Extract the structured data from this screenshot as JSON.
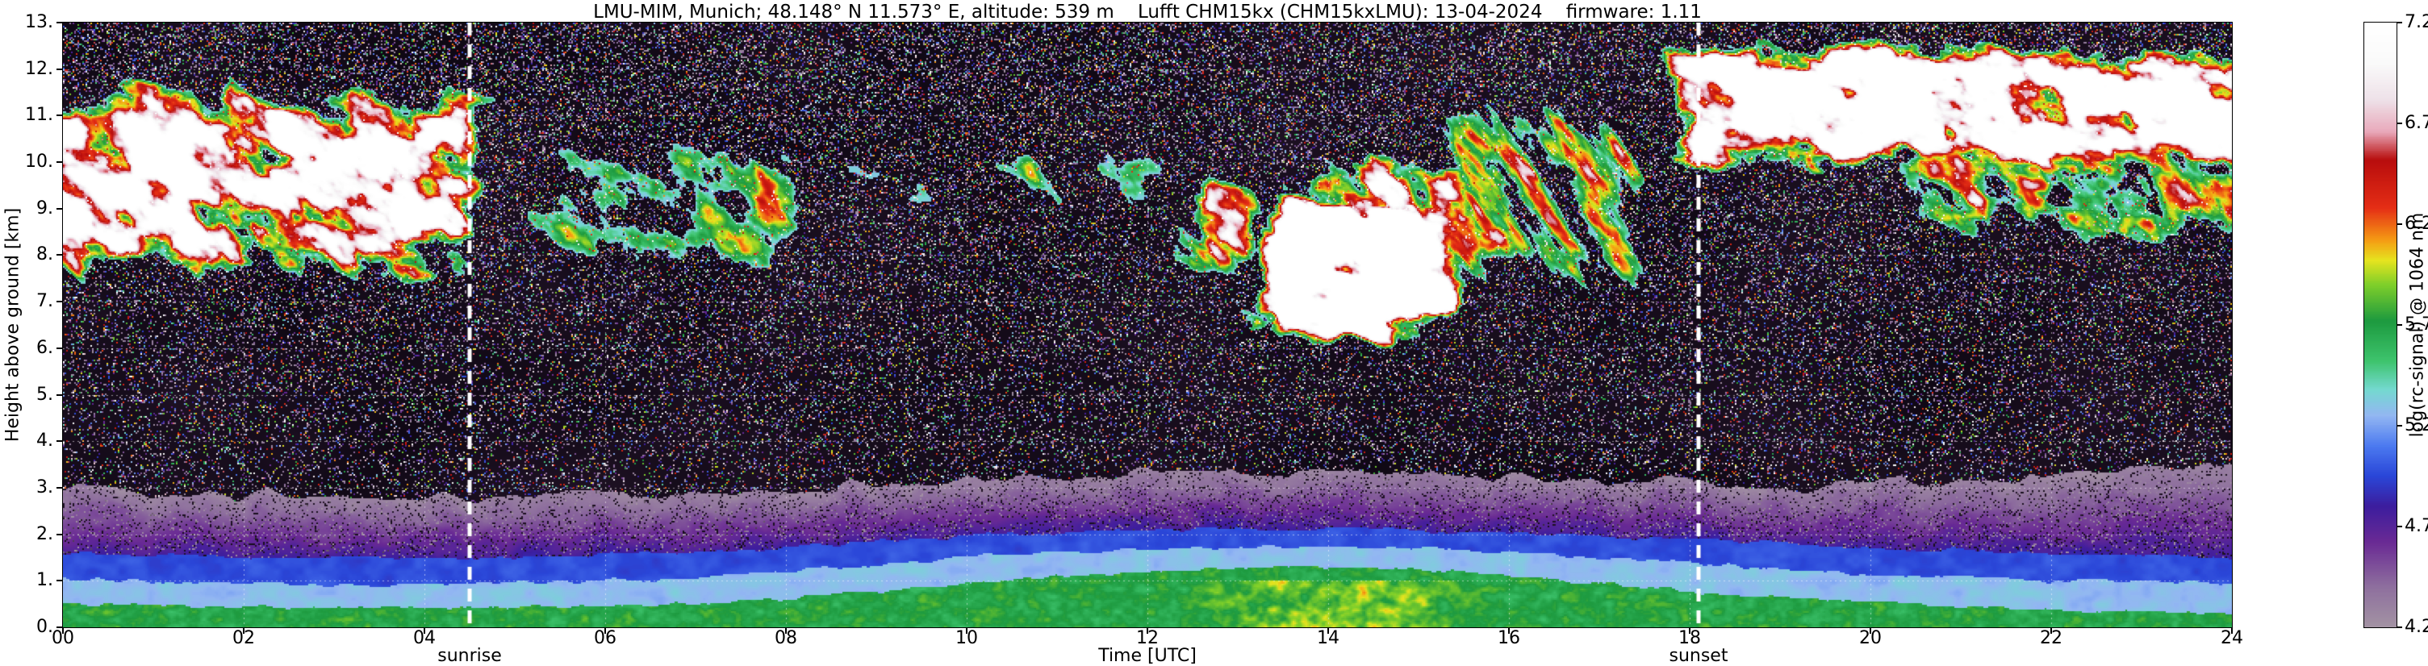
{
  "chart_data": {
    "type": "heatmap",
    "title": "LMU-MIM, Munich; 48.148° N 11.573° E, altitude: 539 m    Lufft CHM15kx (CHM15kxLMU): 13-04-2024    firmware: 1.11",
    "station": "LMU-MIM, Munich",
    "coordinates": "48.148° N 11.573° E",
    "altitude": "539 m",
    "instrument": "Lufft CHM15kx (CHM15kxLMU)",
    "date": "13-04-2024",
    "firmware": "1.11",
    "xlabel": "Time [UTC]",
    "ylabel": "Height above ground [km]",
    "xlim": [
      0,
      24
    ],
    "ylim": [
      0,
      13
    ],
    "xticks": [
      {
        "v": 0,
        "label": "00"
      },
      {
        "v": 2,
        "label": "02"
      },
      {
        "v": 4,
        "label": "04"
      },
      {
        "v": 6,
        "label": "06"
      },
      {
        "v": 8,
        "label": "08"
      },
      {
        "v": 10,
        "label": "10"
      },
      {
        "v": 12,
        "label": "12"
      },
      {
        "v": 14,
        "label": "14"
      },
      {
        "v": 16,
        "label": "16"
      },
      {
        "v": 18,
        "label": "18"
      },
      {
        "v": 20,
        "label": "20"
      },
      {
        "v": 22,
        "label": "22"
      },
      {
        "v": 24,
        "label": "24"
      }
    ],
    "yticks": [
      {
        "v": 0,
        "label": "0."
      },
      {
        "v": 1,
        "label": "1."
      },
      {
        "v": 2,
        "label": "2."
      },
      {
        "v": 3,
        "label": "3."
      },
      {
        "v": 4,
        "label": "4."
      },
      {
        "v": 5,
        "label": "5."
      },
      {
        "v": 6,
        "label": "6."
      },
      {
        "v": 7,
        "label": "7."
      },
      {
        "v": 8,
        "label": "8."
      },
      {
        "v": 9,
        "label": "9."
      },
      {
        "v": 10,
        "label": "10."
      },
      {
        "v": 11,
        "label": "11."
      },
      {
        "v": 12,
        "label": "12."
      },
      {
        "v": 13,
        "label": "13."
      }
    ],
    "grid": {
      "x_step_hours": 2,
      "y_step_km": 1,
      "style": "dotted-white"
    },
    "colorbar": {
      "label": "log(rc-signal) @ 1064 nm",
      "vmin": 4.2,
      "vmax": 7.2,
      "ticks": [
        {
          "v": 7.2,
          "label": "7.2"
        },
        {
          "v": 6.7,
          "label": "6.7"
        },
        {
          "v": 6.2,
          "label": "6.2"
        },
        {
          "v": 5.7,
          "label": "5.7"
        },
        {
          "v": 5.2,
          "label": "5.2"
        },
        {
          "v": 4.7,
          "label": "4.7"
        },
        {
          "v": 4.2,
          "label": "4.2"
        }
      ]
    },
    "annotations": [
      {
        "label": "sunrise",
        "x": 4.5,
        "style": "white-dashed-vertical"
      },
      {
        "label": "sunset",
        "x": 18.1,
        "style": "white-dashed-vertical"
      }
    ],
    "colormap_stops": [
      [
        3.5,
        "#0a050f"
      ],
      [
        4.08,
        "#201225"
      ],
      [
        4.2,
        "#a393a3"
      ],
      [
        4.4,
        "#8e6f9e"
      ],
      [
        4.62,
        "#6a2a94"
      ],
      [
        4.8,
        "#3c1d9e"
      ],
      [
        4.95,
        "#2a46d8"
      ],
      [
        5.1,
        "#4c7af0"
      ],
      [
        5.25,
        "#93b7f2"
      ],
      [
        5.38,
        "#74d9cf"
      ],
      [
        5.52,
        "#3ec46d"
      ],
      [
        5.72,
        "#1d9a3f"
      ],
      [
        5.9,
        "#7fcf2a"
      ],
      [
        6.02,
        "#e6e41f"
      ],
      [
        6.12,
        "#f59c14"
      ],
      [
        6.28,
        "#e52e15"
      ],
      [
        6.52,
        "#b80d0d"
      ],
      [
        6.66,
        "#e9a9bb"
      ],
      [
        6.82,
        "#eee2e9"
      ],
      [
        7.0,
        "#fafafa"
      ],
      [
        7.2,
        "#ffffff"
      ]
    ],
    "noise_seed": 7,
    "background": {
      "base_min": 3.55,
      "speckle_density": 0.12,
      "speckle_height_gain": 0.012
    },
    "boundary_layers": {
      "green_top": [
        0.5,
        0.47,
        0.44,
        0.42,
        0.42,
        0.43,
        0.46,
        0.52,
        0.62,
        0.78,
        0.95,
        1.1,
        1.2,
        1.28,
        1.3,
        1.25,
        1.12,
        0.95,
        0.78,
        0.65,
        0.55,
        0.45,
        0.38,
        0.33,
        0.3
      ],
      "teal_top": [
        1.05,
        1.0,
        0.95,
        0.92,
        0.92,
        0.95,
        1.0,
        1.08,
        1.2,
        1.35,
        1.5,
        1.62,
        1.7,
        1.74,
        1.74,
        1.7,
        1.62,
        1.5,
        1.38,
        1.26,
        1.15,
        1.08,
        1.02,
        0.98,
        0.95
      ],
      "blue_top": [
        1.6,
        1.56,
        1.52,
        1.5,
        1.5,
        1.52,
        1.56,
        1.62,
        1.72,
        1.84,
        1.95,
        2.04,
        2.1,
        2.14,
        2.14,
        2.1,
        2.04,
        1.96,
        1.88,
        1.8,
        1.72,
        1.66,
        1.6,
        1.56,
        1.52
      ],
      "purple_top": [
        3.0,
        2.95,
        2.9,
        2.85,
        2.82,
        2.82,
        2.85,
        2.9,
        2.98,
        3.08,
        3.18,
        3.26,
        3.32,
        3.36,
        3.36,
        3.32,
        3.26,
        3.18,
        3.1,
        3.05,
        3.1,
        3.2,
        3.32,
        3.42,
        3.5
      ],
      "midday_yellow": {
        "t0": 12.4,
        "t1": 15.8,
        "h_top": 1.0,
        "boost": 0.55
      }
    },
    "cloud_features": [
      {
        "t0": 0.0,
        "t1": 4.9,
        "h0": 7.3,
        "h1": 11.9,
        "intensity": 1.0,
        "density": 0.6,
        "streak": 0.45,
        "seed": 11
      },
      {
        "t0": 5.1,
        "t1": 8.4,
        "h0": 7.7,
        "h1": 10.4,
        "intensity": 0.55,
        "density": 0.38,
        "streak": 0.55,
        "seed": 23
      },
      {
        "t0": 8.6,
        "t1": 9.6,
        "h0": 8.8,
        "h1": 9.9,
        "intensity": 0.32,
        "density": 0.26,
        "streak": 0.45,
        "seed": 31
      },
      {
        "t0": 9.4,
        "t1": 10.3,
        "h0": 8.9,
        "h1": 9.7,
        "intensity": 0.3,
        "density": 0.22,
        "streak": 0.4,
        "seed": 37
      },
      {
        "t0": 10.2,
        "t1": 12.3,
        "h0": 8.7,
        "h1": 10.3,
        "intensity": 0.5,
        "density": 0.33,
        "streak": 0.5,
        "seed": 41
      },
      {
        "t0": 12.2,
        "t1": 13.4,
        "h0": 7.4,
        "h1": 10.1,
        "intensity": 0.9,
        "density": 0.5,
        "streak": 0.5,
        "seed": 47
      },
      {
        "t0": 13.0,
        "t1": 15.7,
        "h0": 6.0,
        "h1": 9.4,
        "intensity": 1.3,
        "density": 0.75,
        "streak": 0.35,
        "seed": 53
      },
      {
        "t0": 13.4,
        "t1": 16.3,
        "h0": 7.6,
        "h1": 10.2,
        "intensity": 0.9,
        "density": 0.5,
        "streak": 0.5,
        "seed": 59
      },
      {
        "t0": 14.9,
        "t1": 17.7,
        "h0": 7.0,
        "h1": 11.4,
        "intensity": 0.75,
        "density": 0.4,
        "streak": 0.85,
        "seed": 67
      },
      {
        "t0": 17.6,
        "t1": 24.0,
        "h0": 9.7,
        "h1": 12.7,
        "intensity": 1.15,
        "density": 0.68,
        "streak": 0.35,
        "seed": 73
      },
      {
        "t0": 20.2,
        "t1": 24.0,
        "h0": 8.2,
        "h1": 10.6,
        "intensity": 0.7,
        "density": 0.4,
        "streak": 0.5,
        "seed": 79
      }
    ]
  }
}
